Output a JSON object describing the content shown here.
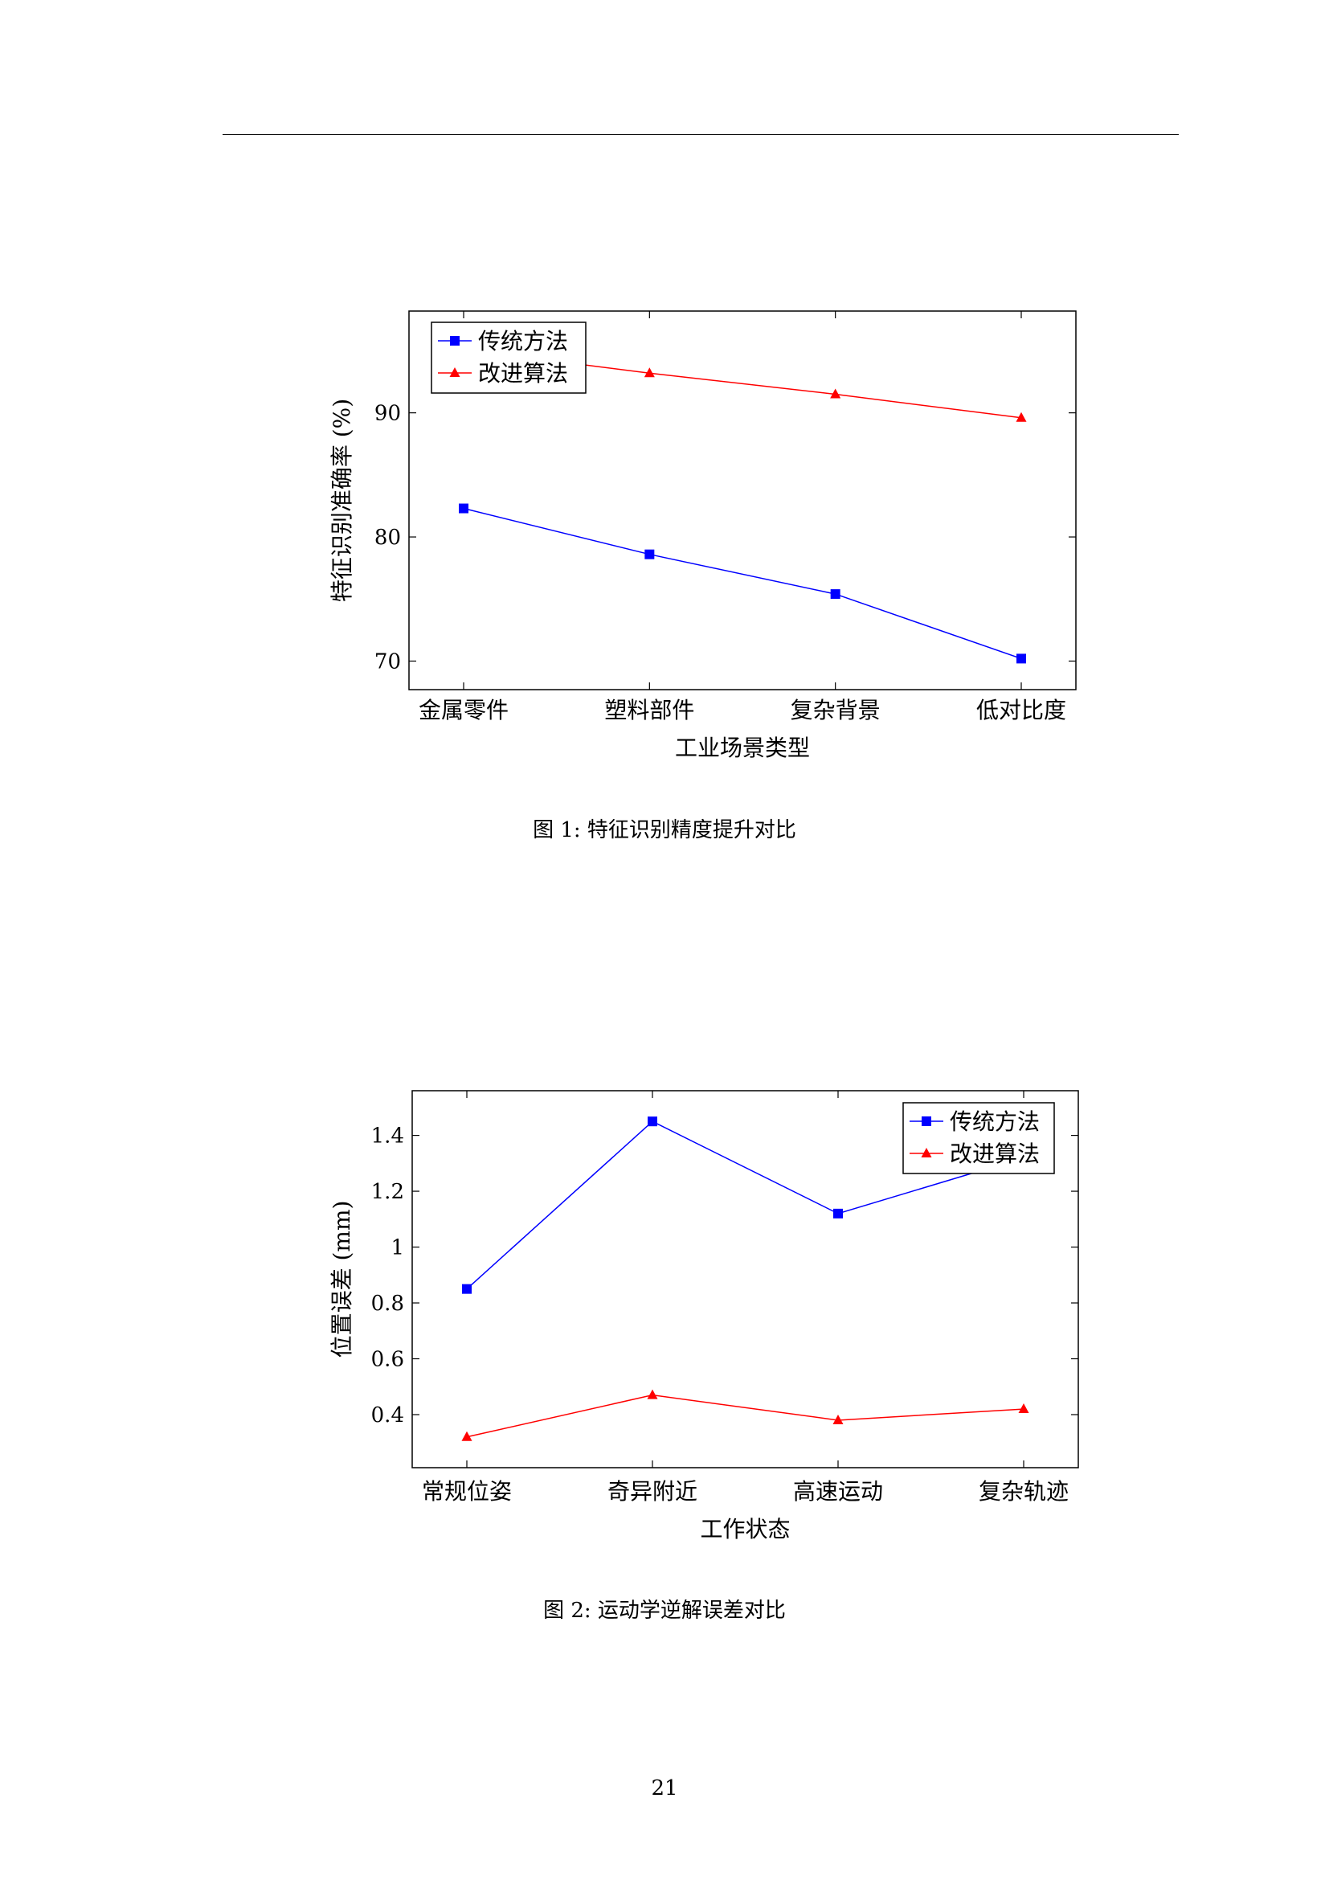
{
  "page": {
    "number": "21"
  },
  "figures": [
    {
      "caption": "图 1: 特征识别精度提升对比",
      "chart_data": {
        "type": "line",
        "title": "",
        "xlabel": "工业场景类型",
        "ylabel": "特征识别准确率 (%)",
        "categories": [
          "金属零件",
          "塑料部件",
          "复杂背景",
          "低对比度"
        ],
        "yticks": [
          "70",
          "80",
          "90"
        ],
        "ylim": [
          67.7,
          98.2
        ],
        "grid": false,
        "legend_position": "top-left",
        "series": [
          {
            "name": "传统方法",
            "values": [
              82.3,
              78.6,
              75.4,
              70.2
            ],
            "color": "#0000ff",
            "marker": "square"
          },
          {
            "name": "改进算法",
            "values": [
              95.1,
              93.2,
              91.5,
              89.6
            ],
            "color": "#ff0000",
            "marker": "triangle"
          }
        ]
      }
    },
    {
      "caption": "图 2: 运动学逆解误差对比",
      "chart_data": {
        "type": "line",
        "title": "",
        "xlabel": "工作状态",
        "ylabel": "位置误差 (mm)",
        "categories": [
          "常规位姿",
          "奇异附近",
          "高速运动",
          "复杂轨迹"
        ],
        "yticks": [
          "0.4",
          "0.6",
          "0.8",
          "1",
          "1.2",
          "1.4"
        ],
        "ylim": [
          0.21,
          1.56
        ],
        "grid": false,
        "legend_position": "top-right",
        "series": [
          {
            "name": "传统方法",
            "values": [
              0.85,
              1.45,
              1.12,
              1.32
            ],
            "color": "#0000ff",
            "marker": "square"
          },
          {
            "name": "改进算法",
            "values": [
              0.32,
              0.47,
              0.38,
              0.42
            ],
            "color": "#ff0000",
            "marker": "triangle"
          }
        ]
      }
    }
  ]
}
